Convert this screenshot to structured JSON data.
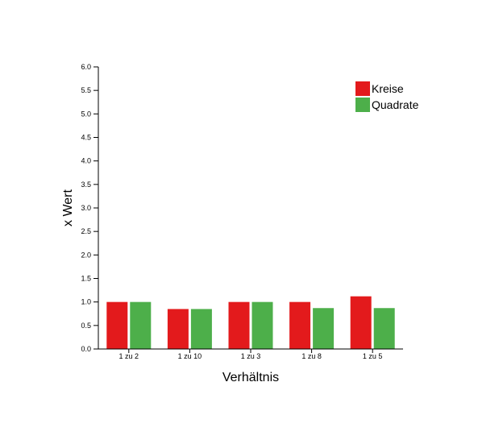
{
  "chart_data": {
    "type": "bar",
    "title": "",
    "xlabel": "Verhältnis",
    "ylabel": "x Wert",
    "categories": [
      "1 zu 2",
      "1 zu 10",
      "1 zu 3",
      "1 zu 8",
      "1 zu 5"
    ],
    "series": [
      {
        "name": "Kreise",
        "color": "#e31a1c",
        "values": [
          1.0,
          0.85,
          1.0,
          1.0,
          1.12
        ]
      },
      {
        "name": "Quadrate",
        "color": "#4daf4a",
        "values": [
          1.0,
          0.85,
          1.0,
          0.87,
          0.87
        ]
      }
    ],
    "ylim": [
      0,
      6.0
    ],
    "yticks": [
      "0.0",
      "0.5",
      "1.0",
      "1.5",
      "2.0",
      "2.5",
      "3.0",
      "3.5",
      "4.0",
      "4.5",
      "5.0",
      "5.5",
      "6.0"
    ],
    "grid": false,
    "legend_position": "top-right"
  }
}
